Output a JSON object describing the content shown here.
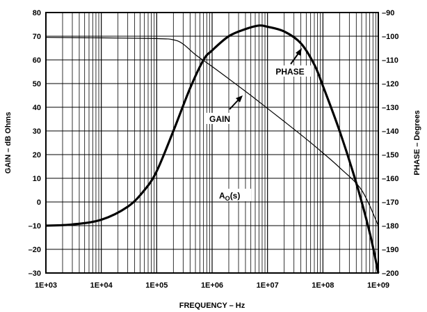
{
  "chart_data": {
    "type": "line",
    "title": "",
    "xlabel": "FREQUENCY – Hz",
    "ylabel_left": "GAIN – dB Ohms",
    "ylabel_right": "PHASE – Degrees",
    "x_scale": "log",
    "xlim": [
      1000,
      1000000000
    ],
    "ylim_left": [
      -30,
      80
    ],
    "ylim_right": [
      -200,
      -90
    ],
    "grid": true,
    "x_ticks": [
      "1E+03",
      "1E+04",
      "1E+05",
      "1E+06",
      "1E+07",
      "1E+08",
      "1E+09"
    ],
    "y_ticks_left": [
      "80",
      "70",
      "60",
      "50",
      "40",
      "30",
      "20",
      "10",
      "0",
      "–10",
      "–20",
      "–30"
    ],
    "y_ticks_right": [
      "–90",
      "–100",
      "–110",
      "–120",
      "–130",
      "–140",
      "–150",
      "–160",
      "–170",
      "–180",
      "–190",
      "–200"
    ],
    "annotations": {
      "gain": "GAIN",
      "phase": "PHASE",
      "ao_main": "A",
      "ao_sub": "O",
      "ao_rest": "(s)"
    },
    "series": [
      {
        "name": "GAIN",
        "axis": "left",
        "x": [
          1000,
          10000,
          100000,
          200000,
          300000,
          500000,
          1000000,
          2000000,
          5000000,
          10000000,
          20000000,
          50000000,
          100000000,
          200000000,
          500000000,
          1000000000
        ],
        "values": [
          69.5,
          69.3,
          69.0,
          68.5,
          66.7,
          62.2,
          57.2,
          52.0,
          45.0,
          39.5,
          34.0,
          26.6,
          20.7,
          14.5,
          5.0,
          -10.0
        ]
      },
      {
        "name": "PHASE",
        "axis": "right",
        "x": [
          1000,
          3000,
          10000,
          30000,
          60000,
          100000,
          200000,
          400000,
          700000,
          1000000,
          2000000,
          4000000,
          7000000,
          10000000,
          20000000,
          40000000,
          70000000,
          100000000,
          200000000,
          400000000,
          700000000,
          1000000000
        ],
        "values": [
          -180,
          -179.5,
          -177.5,
          -172,
          -165,
          -157,
          -140,
          -122,
          -110,
          -106,
          -100,
          -97,
          -95.5,
          -96,
          -98,
          -103,
          -112,
          -121,
          -140,
          -162,
          -183,
          -200
        ]
      }
    ]
  }
}
